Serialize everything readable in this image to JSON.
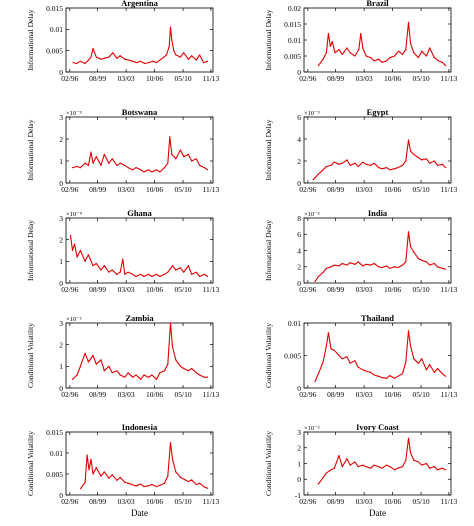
{
  "colors": {
    "series": "#e00000",
    "axis": "#000000"
  },
  "x_tick_labels": [
    "02/96",
    "08/99",
    "03/03",
    "10/06",
    "05/10",
    "11/13"
  ],
  "chart_data": [
    {
      "type": "line",
      "title": "Argentina",
      "xlabel": "",
      "ylabel": "Informational Delay",
      "ylim": [
        0,
        0.015
      ],
      "yticks": [
        0,
        0.005,
        0.01,
        0.015
      ],
      "ytick_labels": [
        "0",
        "0.005",
        "0.01",
        "0.015"
      ],
      "multiplier": "",
      "x": [
        "1996-07",
        "1996-12",
        "1997-06",
        "1998-01",
        "1998-06",
        "1998-10",
        "1999-01",
        "1999-06",
        "2000-01",
        "2000-06",
        "2001-01",
        "2001-07",
        "2002-01",
        "2002-06",
        "2003-01",
        "2003-07",
        "2004-01",
        "2004-07",
        "2005-01",
        "2005-07",
        "2006-01",
        "2006-07",
        "2007-01",
        "2007-06",
        "2007-12",
        "2008-04",
        "2008-08",
        "2008-10",
        "2008-12",
        "2009-03",
        "2009-06",
        "2010-01",
        "2010-06",
        "2011-01",
        "2011-06",
        "2012-01",
        "2012-06",
        "2012-12",
        "2013-06"
      ],
      "y": [
        0.0022,
        0.002,
        0.0025,
        0.002,
        0.0028,
        0.0035,
        0.0055,
        0.0035,
        0.003,
        0.0032,
        0.0035,
        0.0045,
        0.0032,
        0.0038,
        0.003,
        0.0028,
        0.0025,
        0.0022,
        0.0025,
        0.002,
        0.0022,
        0.0025,
        0.0022,
        0.0028,
        0.0035,
        0.004,
        0.006,
        0.0105,
        0.0075,
        0.005,
        0.004,
        0.0035,
        0.0045,
        0.003,
        0.0038,
        0.0028,
        0.004,
        0.0022,
        0.0025
      ]
    },
    {
      "type": "line",
      "title": "Brazil",
      "xlabel": "",
      "ylabel": "Informational Delay",
      "ylim": [
        0,
        0.02
      ],
      "yticks": [
        0,
        0.005,
        0.01,
        0.015,
        0.02
      ],
      "ytick_labels": [
        "0",
        "0.005",
        "0.01",
        "0.015",
        "0.02"
      ],
      "multiplier": "",
      "x": [
        "1997-06",
        "1998-01",
        "1998-06",
        "1998-09",
        "1998-12",
        "1999-03",
        "1999-07",
        "2000-01",
        "2000-06",
        "2001-01",
        "2001-06",
        "2002-01",
        "2002-07",
        "2002-10",
        "2003-01",
        "2003-06",
        "2004-01",
        "2004-06",
        "2005-01",
        "2005-06",
        "2006-01",
        "2006-06",
        "2007-01",
        "2007-07",
        "2008-01",
        "2008-06",
        "2008-10",
        "2009-01",
        "2009-06",
        "2010-01",
        "2010-06",
        "2011-01",
        "2011-06",
        "2012-01",
        "2012-07",
        "2013-01",
        "2013-06"
      ],
      "y": [
        0.002,
        0.004,
        0.006,
        0.012,
        0.008,
        0.0095,
        0.006,
        0.007,
        0.0055,
        0.0075,
        0.006,
        0.005,
        0.007,
        0.012,
        0.0075,
        0.005,
        0.0045,
        0.0035,
        0.004,
        0.003,
        0.0035,
        0.0045,
        0.005,
        0.0065,
        0.0055,
        0.007,
        0.0155,
        0.009,
        0.006,
        0.0045,
        0.0065,
        0.005,
        0.0075,
        0.0045,
        0.0035,
        0.003,
        0.002
      ]
    },
    {
      "type": "line",
      "title": "Botswana",
      "xlabel": "",
      "ylabel": "Informational Delay",
      "ylim": [
        0,
        0.003
      ],
      "yticks": [
        0,
        0.001,
        0.002,
        0.003
      ],
      "ytick_labels": [
        "0",
        "1",
        "2",
        "3"
      ],
      "multiplier": "×10⁻³",
      "x": [
        "1996-06",
        "1997-01",
        "1997-06",
        "1998-01",
        "1998-06",
        "1998-10",
        "1999-01",
        "1999-06",
        "2000-01",
        "2000-06",
        "2001-01",
        "2001-06",
        "2002-01",
        "2002-06",
        "2003-01",
        "2003-06",
        "2004-01",
        "2004-06",
        "2005-01",
        "2005-06",
        "2006-01",
        "2006-06",
        "2007-01",
        "2007-06",
        "2008-01",
        "2008-06",
        "2008-09",
        "2008-12",
        "2009-06",
        "2010-01",
        "2010-06",
        "2011-01",
        "2011-06",
        "2012-01",
        "2012-06",
        "2013-01",
        "2013-06"
      ],
      "y": [
        0.0007,
        0.00075,
        0.0007,
        0.0009,
        0.0008,
        0.0014,
        0.0009,
        0.0012,
        0.0008,
        0.0013,
        0.0009,
        0.0011,
        0.0008,
        0.0009,
        0.0008,
        0.0007,
        0.0006,
        0.0007,
        0.0006,
        0.0005,
        0.0006,
        0.0005,
        0.0006,
        0.0005,
        0.0007,
        0.0009,
        0.0021,
        0.0013,
        0.0011,
        0.0015,
        0.0012,
        0.0013,
        0.001,
        0.0011,
        0.0008,
        0.0007,
        0.0006
      ]
    },
    {
      "type": "line",
      "title": "Egypt",
      "xlabel": "",
      "ylabel": "Informational Delay",
      "ylim": [
        0,
        0.006
      ],
      "yticks": [
        0,
        0.002,
        0.004,
        0.006
      ],
      "ytick_labels": [
        "0",
        "2",
        "4",
        "6"
      ],
      "multiplier": "×10⁻³",
      "x": [
        "1996-10",
        "1997-06",
        "1998-01",
        "1998-06",
        "1999-01",
        "1999-06",
        "2000-01",
        "2000-06",
        "2001-01",
        "2001-06",
        "2002-01",
        "2002-06",
        "2003-01",
        "2003-06",
        "2004-01",
        "2004-06",
        "2005-01",
        "2005-06",
        "2006-01",
        "2006-06",
        "2007-01",
        "2007-06",
        "2008-01",
        "2008-06",
        "2008-10",
        "2009-01",
        "2009-06",
        "2010-01",
        "2010-06",
        "2011-01",
        "2011-06",
        "2012-01",
        "2012-06",
        "2013-01",
        "2013-06"
      ],
      "y": [
        0.0003,
        0.0008,
        0.0012,
        0.0015,
        0.0016,
        0.0019,
        0.0017,
        0.0018,
        0.0021,
        0.0016,
        0.0018,
        0.0015,
        0.0019,
        0.0017,
        0.0016,
        0.0018,
        0.0014,
        0.0013,
        0.0014,
        0.0012,
        0.0013,
        0.0014,
        0.0016,
        0.002,
        0.0039,
        0.0029,
        0.0026,
        0.0023,
        0.0021,
        0.0022,
        0.0018,
        0.002,
        0.0016,
        0.0017,
        0.0014
      ]
    },
    {
      "type": "line",
      "title": "Ghana",
      "xlabel": "",
      "ylabel": "Informational Delay",
      "ylim": [
        0,
        0.0003
      ],
      "yticks": [
        0,
        0.0001,
        0.0002,
        0.0003
      ],
      "ytick_labels": [
        "0",
        "1",
        "2",
        "3"
      ],
      "multiplier": "×10⁻⁴",
      "x": [
        "1996-03",
        "1996-06",
        "1996-09",
        "1997-01",
        "1997-06",
        "1998-01",
        "1998-06",
        "1999-01",
        "1999-06",
        "2000-01",
        "2000-06",
        "2001-01",
        "2001-06",
        "2002-01",
        "2002-06",
        "2002-10",
        "2003-01",
        "2003-06",
        "2004-01",
        "2004-06",
        "2005-01",
        "2005-06",
        "2006-01",
        "2006-06",
        "2007-01",
        "2007-06",
        "2008-01",
        "2008-06",
        "2009-01",
        "2009-06",
        "2010-01",
        "2010-06",
        "2011-01",
        "2011-06",
        "2012-01",
        "2012-06",
        "2013-01",
        "2013-06"
      ],
      "y": [
        0.00022,
        0.00015,
        0.00018,
        0.00012,
        0.00015,
        0.0001,
        0.00013,
        8e-05,
        9e-05,
        6e-05,
        8e-05,
        5e-05,
        6e-05,
        4e-05,
        5e-05,
        0.00011,
        4e-05,
        5e-05,
        4e-05,
        3e-05,
        4e-05,
        3e-05,
        4e-05,
        3e-05,
        4e-05,
        3e-05,
        4e-05,
        5e-05,
        8e-05,
        6e-05,
        7e-05,
        5e-05,
        8e-05,
        4e-05,
        5e-05,
        3e-05,
        4e-05,
        3e-05
      ]
    },
    {
      "type": "line",
      "title": "India",
      "xlabel": "",
      "ylabel": "Informational Delay",
      "ylim": [
        0,
        0.008
      ],
      "yticks": [
        0,
        0.002,
        0.004,
        0.006,
        0.008
      ],
      "ytick_labels": [
        "0",
        "2",
        "4",
        "6",
        "8"
      ],
      "multiplier": "×10⁻³",
      "x": [
        "1997-01",
        "1997-06",
        "1998-01",
        "1998-06",
        "1999-01",
        "1999-06",
        "2000-01",
        "2000-06",
        "2001-01",
        "2001-06",
        "2002-01",
        "2002-06",
        "2003-01",
        "2003-06",
        "2004-01",
        "2004-06",
        "2005-01",
        "2005-06",
        "2006-01",
        "2006-06",
        "2007-01",
        "2007-06",
        "2008-01",
        "2008-06",
        "2008-10",
        "2009-01",
        "2009-06",
        "2010-01",
        "2010-06",
        "2011-01",
        "2011-06",
        "2012-01",
        "2012-06",
        "2013-01",
        "2013-06"
      ],
      "y": [
        0.0002,
        0.0008,
        0.0013,
        0.0018,
        0.002,
        0.0022,
        0.0021,
        0.0024,
        0.0022,
        0.0025,
        0.0023,
        0.0026,
        0.0021,
        0.0023,
        0.0022,
        0.0024,
        0.002,
        0.0019,
        0.0021,
        0.0018,
        0.002,
        0.0019,
        0.0022,
        0.0026,
        0.0063,
        0.0045,
        0.0038,
        0.003,
        0.0028,
        0.0026,
        0.0022,
        0.0024,
        0.002,
        0.0018,
        0.0017
      ]
    },
    {
      "type": "line",
      "title": "Zambia",
      "xlabel": "",
      "ylabel": "Conditional Volatility",
      "ylim": [
        0,
        0.003
      ],
      "yticks": [
        0,
        0.001,
        0.002,
        0.003
      ],
      "ytick_labels": [
        "0",
        "1",
        "2",
        "3"
      ],
      "multiplier": "×10⁻³",
      "x": [
        "1996-06",
        "1997-01",
        "1997-06",
        "1998-01",
        "1998-06",
        "1999-01",
        "1999-06",
        "2000-01",
        "2000-06",
        "2001-01",
        "2001-06",
        "2002-01",
        "2002-06",
        "2003-01",
        "2003-06",
        "2004-01",
        "2004-06",
        "2005-01",
        "2005-06",
        "2006-01",
        "2006-06",
        "2007-01",
        "2007-06",
        "2008-01",
        "2008-06",
        "2008-10",
        "2009-01",
        "2009-06",
        "2010-01",
        "2010-06",
        "2011-01",
        "2011-06",
        "2012-01",
        "2012-06",
        "2013-01",
        "2013-06"
      ],
      "y": [
        0.0004,
        0.0006,
        0.001,
        0.0016,
        0.0012,
        0.0015,
        0.0011,
        0.0013,
        0.0008,
        0.001,
        0.0007,
        0.0008,
        0.0006,
        0.0005,
        0.0007,
        0.0005,
        0.0006,
        0.0004,
        0.0006,
        0.0005,
        0.0006,
        0.0004,
        0.0007,
        0.0008,
        0.0011,
        0.003,
        0.0019,
        0.0013,
        0.001,
        0.0009,
        0.0008,
        0.0009,
        0.0007,
        0.0006,
        0.0005,
        0.0005
      ]
    },
    {
      "type": "line",
      "title": "Thailand",
      "xlabel": "",
      "ylabel": "Conditional Volatility",
      "ylim": [
        0,
        0.01
      ],
      "yticks": [
        0,
        0.005,
        0.01
      ],
      "ytick_labels": [
        "0",
        "0.005",
        "0.01"
      ],
      "multiplier": "",
      "x": [
        "1997-01",
        "1997-06",
        "1998-01",
        "1998-06",
        "1998-09",
        "1999-01",
        "1999-06",
        "2000-01",
        "2000-06",
        "2001-01",
        "2001-06",
        "2002-01",
        "2002-06",
        "2003-01",
        "2003-06",
        "2004-01",
        "2004-06",
        "2005-01",
        "2005-06",
        "2006-01",
        "2006-06",
        "2007-01",
        "2007-06",
        "2008-01",
        "2008-06",
        "2008-10",
        "2009-01",
        "2009-06",
        "2010-01",
        "2010-06",
        "2011-01",
        "2011-06",
        "2012-01",
        "2012-06",
        "2013-01",
        "2013-06"
      ],
      "y": [
        0.001,
        0.0022,
        0.004,
        0.0065,
        0.0085,
        0.006,
        0.0058,
        0.005,
        0.0045,
        0.0048,
        0.0038,
        0.0042,
        0.0032,
        0.0028,
        0.0026,
        0.0024,
        0.002,
        0.0018,
        0.0016,
        0.0015,
        0.0019,
        0.0015,
        0.0018,
        0.0022,
        0.004,
        0.0088,
        0.0065,
        0.0045,
        0.0038,
        0.0045,
        0.0028,
        0.0036,
        0.0024,
        0.003,
        0.0022,
        0.0018
      ]
    },
    {
      "type": "line",
      "title": "Indonesia",
      "xlabel": "Date",
      "ylabel": "Conditional Volatility",
      "ylim": [
        0,
        0.015
      ],
      "yticks": [
        0,
        0.005,
        0.01,
        0.015
      ],
      "ytick_labels": [
        "0",
        "0.005",
        "0.01",
        "0.015"
      ],
      "multiplier": "",
      "x": [
        "1997-06",
        "1998-01",
        "1998-04",
        "1998-07",
        "1998-10",
        "1999-01",
        "1999-06",
        "2000-01",
        "2000-06",
        "2001-01",
        "2001-06",
        "2002-01",
        "2002-06",
        "2003-01",
        "2003-06",
        "2004-01",
        "2004-06",
        "2005-01",
        "2005-06",
        "2006-01",
        "2006-06",
        "2007-01",
        "2007-06",
        "2008-01",
        "2008-06",
        "2008-10",
        "2009-01",
        "2009-06",
        "2010-01",
        "2010-06",
        "2011-01",
        "2011-06",
        "2012-01",
        "2012-06",
        "2013-01",
        "2013-06"
      ],
      "y": [
        0.0015,
        0.003,
        0.0095,
        0.006,
        0.0085,
        0.005,
        0.0065,
        0.0045,
        0.0055,
        0.004,
        0.0048,
        0.0035,
        0.0042,
        0.003,
        0.0028,
        0.0024,
        0.0022,
        0.0026,
        0.002,
        0.0022,
        0.0025,
        0.002,
        0.0023,
        0.0028,
        0.0045,
        0.0125,
        0.0085,
        0.0055,
        0.0042,
        0.0038,
        0.0032,
        0.0036,
        0.0025,
        0.0028,
        0.0019,
        0.0016
      ]
    },
    {
      "type": "line",
      "title": "Ivory Coast",
      "xlabel": "Date",
      "ylabel": "Conditional Volatility",
      "ylim": [
        -0.001,
        0.003
      ],
      "yticks": [
        -0.001,
        0,
        0.001,
        0.002,
        0.003
      ],
      "ytick_labels": [
        "-1",
        "0",
        "1",
        "2",
        "3"
      ],
      "multiplier": "×10⁻³",
      "x": [
        "1997-06",
        "1998-01",
        "1998-06",
        "1999-01",
        "1999-06",
        "2000-01",
        "2000-06",
        "2001-01",
        "2001-06",
        "2002-01",
        "2002-06",
        "2003-01",
        "2003-06",
        "2004-01",
        "2004-06",
        "2005-01",
        "2005-06",
        "2006-01",
        "2006-06",
        "2007-01",
        "2007-06",
        "2008-01",
        "2008-06",
        "2008-10",
        "2009-01",
        "2009-06",
        "2010-01",
        "2010-06",
        "2011-01",
        "2011-06",
        "2012-01",
        "2012-06",
        "2013-01",
        "2013-06"
      ],
      "y": [
        -0.0003,
        0.0001,
        0.0004,
        0.0006,
        0.0007,
        0.0015,
        0.0008,
        0.0013,
        0.0009,
        0.0011,
        0.0008,
        0.0009,
        0.0008,
        0.0007,
        0.0009,
        0.0008,
        0.0007,
        0.0009,
        0.0008,
        0.0006,
        0.0007,
        0.0008,
        0.0012,
        0.0026,
        0.0017,
        0.0012,
        0.0011,
        0.0009,
        0.001,
        0.0007,
        0.0008,
        0.0006,
        0.0007,
        0.0006
      ]
    }
  ]
}
